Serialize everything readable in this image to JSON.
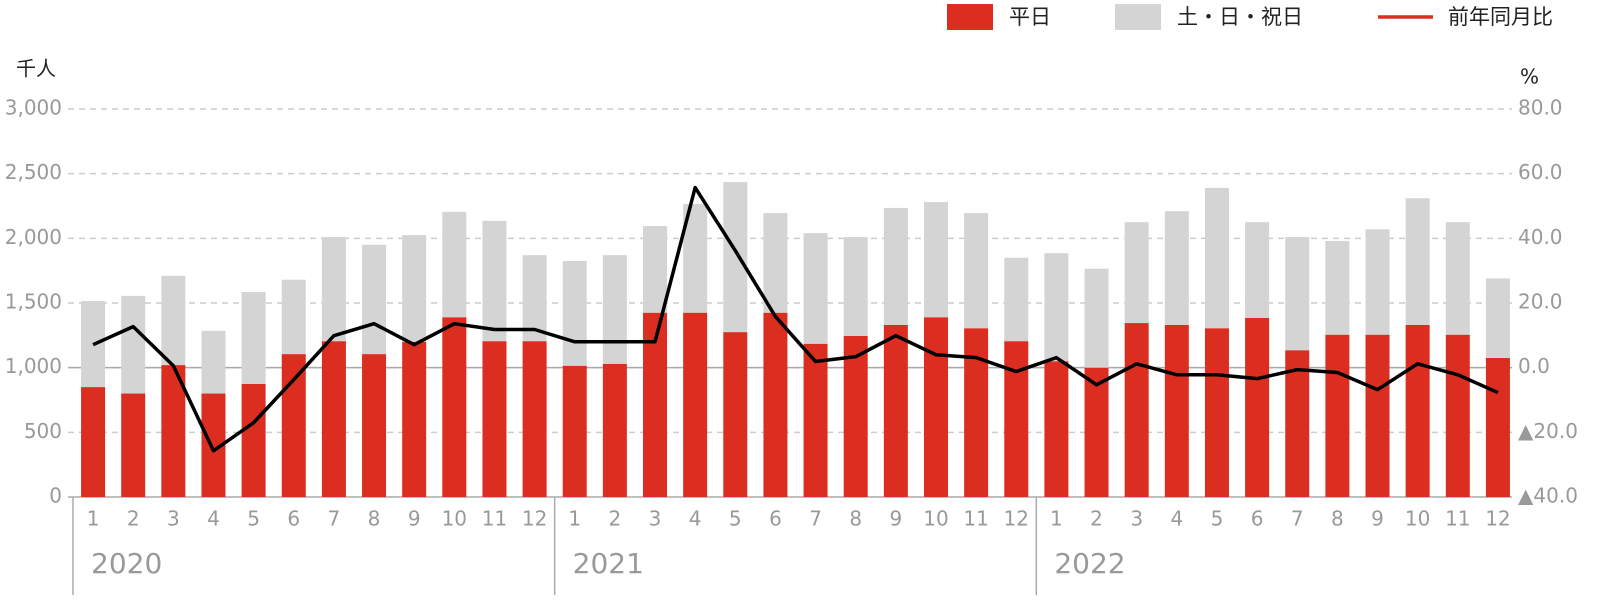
{
  "chart_data": {
    "type": "bar-line",
    "y_label": "千人",
    "y2_label": "%",
    "categories": [
      "1",
      "2",
      "3",
      "4",
      "5",
      "6",
      "7",
      "8",
      "9",
      "10",
      "11",
      "12",
      "1",
      "2",
      "3",
      "4",
      "5",
      "6",
      "7",
      "8",
      "9",
      "10",
      "11",
      "12",
      "1",
      "2",
      "3",
      "4",
      "5",
      "6",
      "7",
      "8",
      "9",
      "10",
      "11",
      "12"
    ],
    "years": [
      "2020",
      "2021",
      "2022"
    ],
    "series": [
      {
        "name": "平日",
        "color": "#dc2e20",
        "type": "bar",
        "values": [
          850,
          800,
          1020,
          800,
          875,
          1105,
          1205,
          1105,
          1200,
          1390,
          1205,
          1205,
          1015,
          1030,
          1425,
          1425,
          1275,
          1425,
          1185,
          1245,
          1330,
          1390,
          1305,
          1205,
          1050,
          1000,
          1345,
          1330,
          1305,
          1385,
          1135,
          1255,
          1255,
          1330,
          1255,
          1075
        ]
      },
      {
        "name": "土・日・祝日",
        "color": "#d4d4d4",
        "type": "bar",
        "values": [
          665,
          755,
          690,
          485,
          710,
          575,
          805,
          845,
          825,
          815,
          930,
          665,
          810,
          840,
          670,
          840,
          1160,
          770,
          855,
          765,
          905,
          890,
          890,
          645,
          835,
          765,
          780,
          880,
          1085,
          740,
          875,
          725,
          815,
          980,
          870,
          615
        ]
      },
      {
        "name": "前年同月比",
        "color": "#000000",
        "legend_color": "#dc2e20",
        "type": "line",
        "axis": "y2",
        "values": [
          7.1,
          12.7,
          0.6,
          -25.7,
          -17.0,
          -3.7,
          9.9,
          13.6,
          7.1,
          13.6,
          11.8,
          11.8,
          8.0,
          8.0,
          8.0,
          55.7,
          36.2,
          15.8,
          1.9,
          3.4,
          9.9,
          4.0,
          3.1,
          -1.2,
          3.1,
          -5.3,
          1.2,
          -2.2,
          -2.2,
          -3.4,
          -0.6,
          -1.5,
          -6.8,
          1.2,
          -2.2,
          -7.7
        ]
      }
    ],
    "ylim": [
      0,
      3000
    ],
    "yticks": [
      0,
      500,
      {
        "value": 1000,
        "label": "1,000"
      },
      {
        "value": 1500,
        "label": "1,500"
      },
      {
        "value": 2000,
        "label": "2,000"
      },
      {
        "value": 2500,
        "label": "2,500"
      },
      {
        "value": 3000,
        "label": "3,000"
      }
    ],
    "y2lim": [
      -40,
      80
    ],
    "y2ticks": [
      {
        "value": -40,
        "label": "▲40.0"
      },
      {
        "value": -20,
        "label": "▲20.0"
      },
      {
        "value": 0,
        "label": "0.0"
      },
      {
        "value": 20,
        "label": "20.0"
      },
      {
        "value": 40,
        "label": "40.0"
      },
      {
        "value": 60,
        "label": "60.0"
      },
      {
        "value": 80,
        "label": "80.0"
      }
    ],
    "grid": true,
    "legend": "top-right"
  }
}
